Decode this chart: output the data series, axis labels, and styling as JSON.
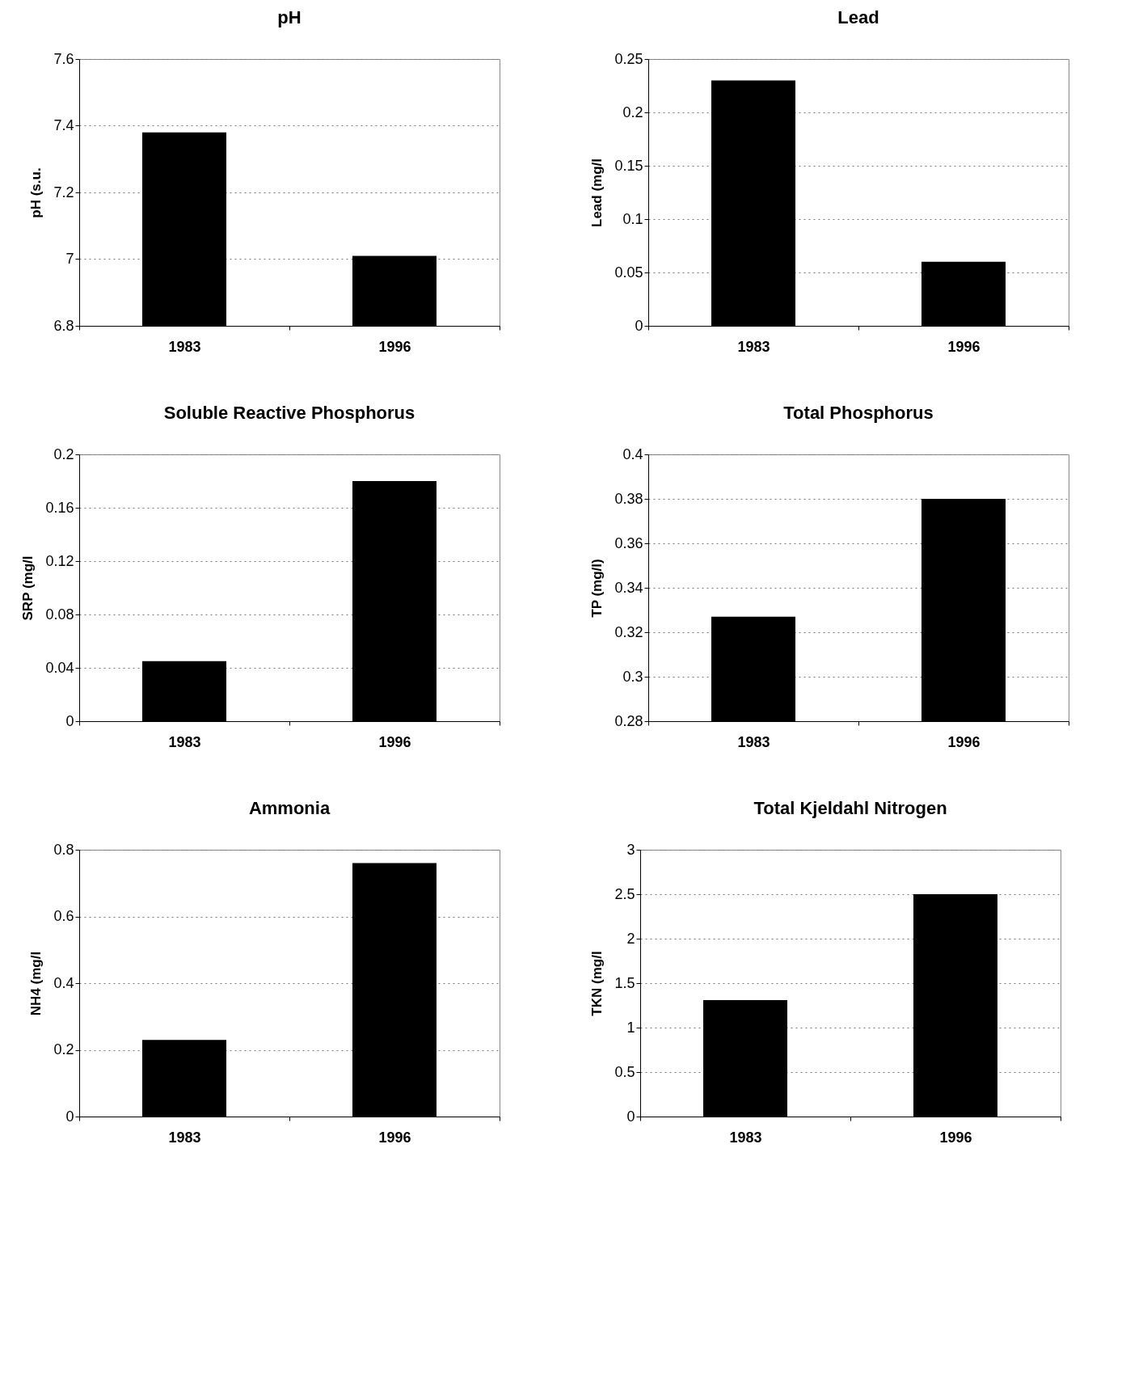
{
  "chart_data": [
    {
      "type": "bar",
      "title": "pH",
      "ylabel": "pH (s.u.",
      "categories": [
        "1983",
        "1996"
      ],
      "values": [
        7.38,
        7.01
      ],
      "color": "#000000",
      "ylim": [
        6.8,
        7.6
      ],
      "yticks": [
        6.8,
        7,
        7.2,
        7.4,
        7.6
      ],
      "grid": "y"
    },
    {
      "type": "bar",
      "title": "Lead",
      "ylabel": "Lead (mg/l",
      "categories": [
        "1983",
        "1996"
      ],
      "values": [
        0.23,
        0.06
      ],
      "color": "#000000",
      "ylim": [
        0,
        0.25
      ],
      "yticks": [
        0,
        0.05,
        0.1,
        0.15,
        0.2,
        0.25
      ],
      "grid": "y"
    },
    {
      "type": "bar",
      "title": "Soluble Reactive Phosphorus",
      "ylabel": "SRP (mg/l",
      "categories": [
        "1983",
        "1996"
      ],
      "values": [
        0.045,
        0.18
      ],
      "color": "#000000",
      "ylim": [
        0,
        0.2
      ],
      "yticks": [
        0,
        0.04,
        0.08,
        0.12,
        0.16,
        0.2
      ],
      "grid": "y"
    },
    {
      "type": "bar",
      "title": "Total Phosphorus",
      "ylabel": "TP (mg/l)",
      "categories": [
        "1983",
        "1996"
      ],
      "values": [
        0.327,
        0.38
      ],
      "color": "#000000",
      "ylim": [
        0.28,
        0.4
      ],
      "yticks": [
        0.28,
        0.3,
        0.32,
        0.34,
        0.36,
        0.38,
        0.4
      ],
      "grid": "y"
    },
    {
      "type": "bar",
      "title": "Ammonia",
      "ylabel": "NH4 (mg/l",
      "categories": [
        "1983",
        "1996"
      ],
      "values": [
        0.23,
        0.76
      ],
      "color": "#000000",
      "ylim": [
        0,
        0.8
      ],
      "yticks": [
        0,
        0.2,
        0.4,
        0.6,
        0.8
      ],
      "grid": "y"
    },
    {
      "type": "bar",
      "title": "Total Kjeldahl Nitrogen",
      "ylabel": "TKN (mg/l",
      "categories": [
        "1983",
        "1996"
      ],
      "values": [
        1.31,
        2.5
      ],
      "color": "#000000",
      "ylim": [
        0,
        3
      ],
      "yticks": [
        0,
        0.5,
        1,
        1.5,
        2,
        2.5,
        3
      ],
      "grid": "y"
    }
  ]
}
